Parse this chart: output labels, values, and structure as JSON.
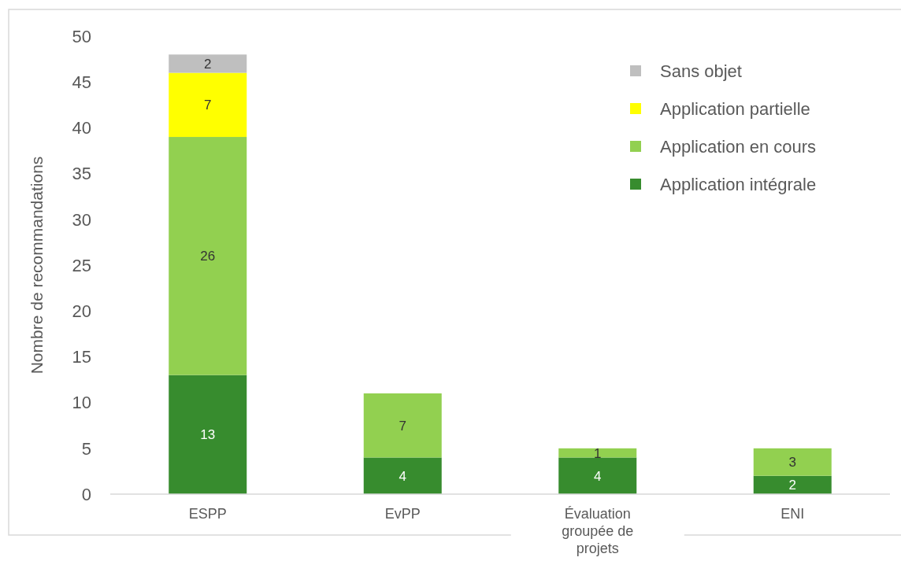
{
  "chart_data": {
    "type": "bar",
    "stacked": true,
    "ylabel": "Nombre de recommandations",
    "categories": [
      "ESPP",
      "EvPP",
      "Évaluation groupée de projets",
      "ENI"
    ],
    "series": [
      {
        "name": "Application intégrale",
        "color": "#378c2e",
        "values": [
          13,
          4,
          4,
          2
        ]
      },
      {
        "name": "Application en cours",
        "color": "#92d050",
        "values": [
          26,
          7,
          1,
          3
        ]
      },
      {
        "name": "Application partielle",
        "color": "#ffff00",
        "values": [
          7,
          null,
          null,
          null
        ]
      },
      {
        "name": "Sans objet",
        "color": "#bfbfbf",
        "values": [
          2,
          null,
          null,
          null
        ]
      }
    ],
    "ylim": [
      0,
      50
    ],
    "yticks": [
      0,
      5,
      10,
      15,
      20,
      25,
      30,
      35,
      40,
      45,
      50
    ],
    "grid": false,
    "legend": "top right",
    "data_labels": true
  }
}
